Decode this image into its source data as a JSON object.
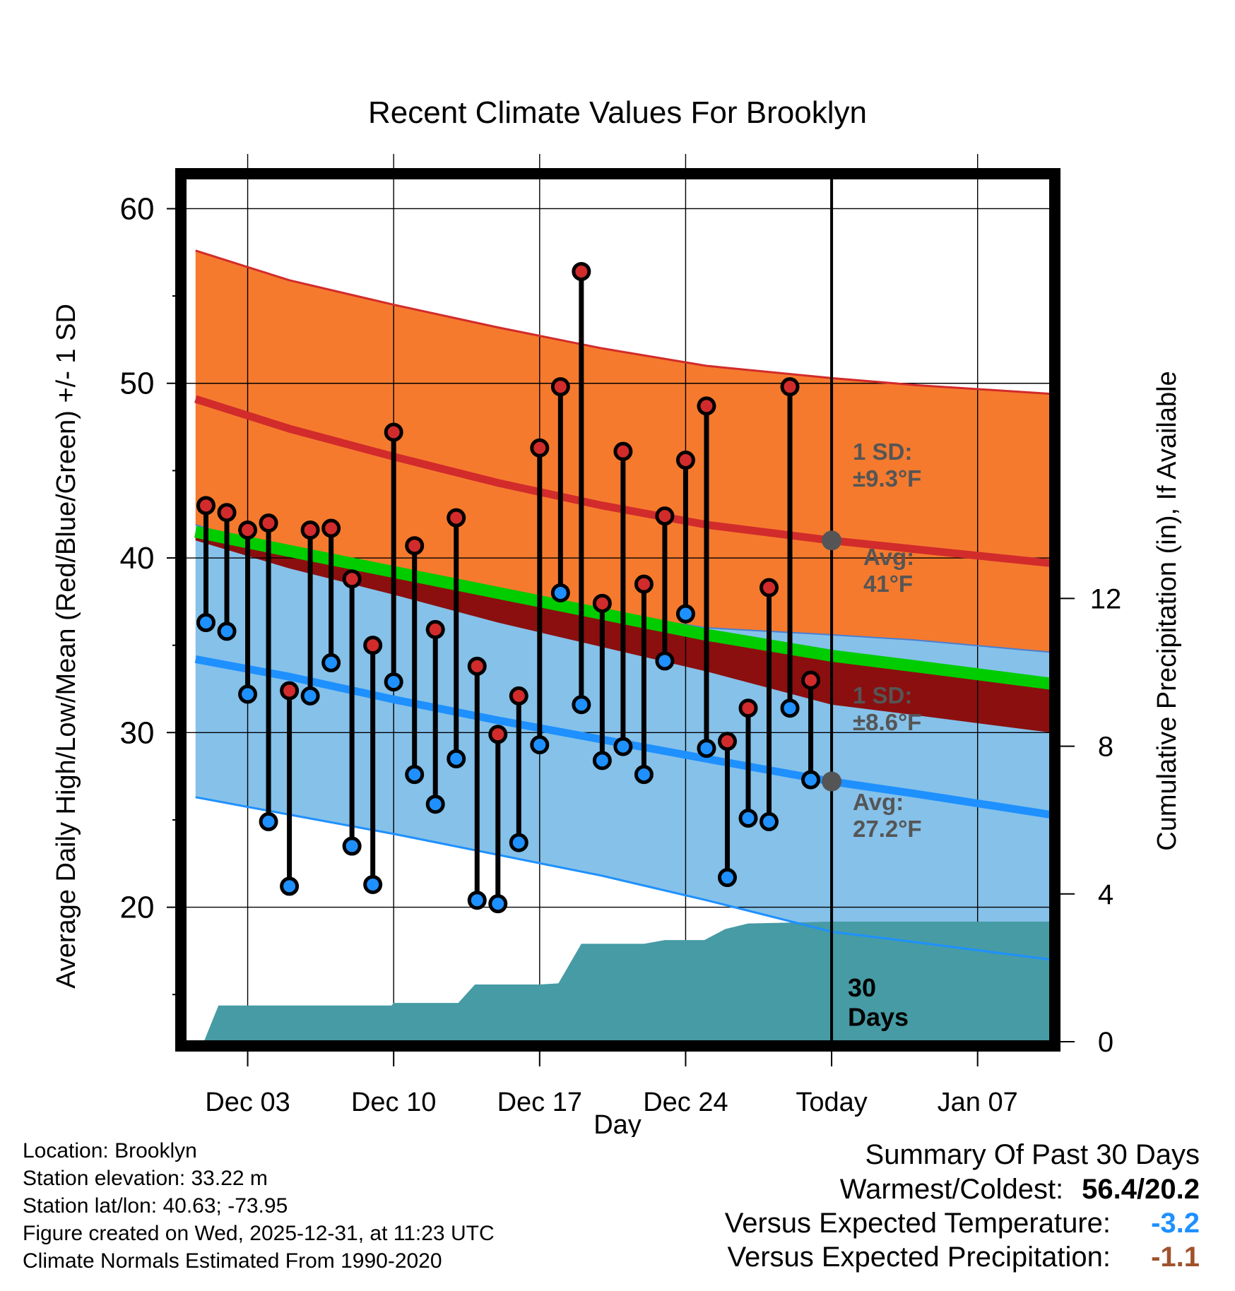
{
  "colors": {
    "high_band": "#F57A2E",
    "high_line": "#D22B2B",
    "low_band": "#85C1E9",
    "low_line": "#1E90FF",
    "mean_band": "#8B0F0F",
    "mean_line": "#00CC00",
    "precip": "#469BA4",
    "high_dot": "#D22B2B",
    "low_dot": "#1E90FF",
    "annotation": "#555555"
  },
  "chart_data": {
    "type": "line",
    "title": "Recent Climate Values For Brooklyn",
    "xlabel": "Day",
    "ylabel": "Average Daily High/Low/Mean (Red/Blue/Green) +/- 1 SD",
    "y2label": "Cumulative Precipitation (in), If Available",
    "xlim": [
      0,
      41.5
    ],
    "ylim": [
      12.3,
      62
    ],
    "y2lim": [
      0,
      23.5
    ],
    "x_ticks": [
      {
        "x": 3,
        "label": "Dec 03"
      },
      {
        "x": 10,
        "label": "Dec 10"
      },
      {
        "x": 17,
        "label": "Dec 17"
      },
      {
        "x": 24,
        "label": "Dec 24"
      },
      {
        "x": 31,
        "label": "Today"
      },
      {
        "x": 38,
        "label": "Jan 07"
      }
    ],
    "y_ticks": [
      20,
      30,
      40,
      50,
      60
    ],
    "y2_ticks": [
      0,
      4,
      8,
      12
    ],
    "today_x": 31,
    "normals": {
      "x": [
        0.5,
        5,
        10,
        15,
        20,
        25,
        31,
        35,
        41.5
      ],
      "avg_high": [
        49.1,
        47.4,
        45.8,
        44.3,
        43.0,
        41.9,
        41.0,
        40.5,
        39.7
      ],
      "high_upper": [
        57.6,
        55.9,
        54.5,
        53.2,
        52.0,
        51.0,
        50.3,
        49.9,
        49.4
      ],
      "high_lower": [
        41.9,
        40.3,
        39.0,
        37.9,
        36.9,
        36.0,
        35.6,
        35.3,
        34.6
      ],
      "avg_mean": [
        41.5,
        40.4,
        39.2,
        38.0,
        36.8,
        35.6,
        34.4,
        33.8,
        32.8
      ],
      "mean_lower": [
        41.0,
        39.4,
        37.9,
        36.3,
        34.9,
        33.5,
        31.6,
        31.0,
        30.0
      ],
      "avg_low": [
        34.2,
        33.2,
        31.9,
        30.7,
        29.6,
        28.5,
        27.2,
        26.5,
        25.3
      ],
      "low_lower": [
        26.3,
        25.3,
        24.2,
        23.0,
        21.8,
        20.4,
        18.6,
        18.0,
        17.0
      ]
    },
    "series": [
      {
        "name": "Daily High",
        "x": [
          1,
          2,
          3,
          4,
          5,
          6,
          7,
          8,
          9,
          10,
          11,
          12,
          13,
          14,
          15,
          16,
          17,
          18,
          19,
          20,
          21,
          22,
          23,
          24,
          25,
          26,
          27,
          28,
          29,
          30
        ],
        "values": [
          43.0,
          42.6,
          41.6,
          42.0,
          32.4,
          41.6,
          41.7,
          38.8,
          35.0,
          47.2,
          40.7,
          35.9,
          42.3,
          33.8,
          29.9,
          32.1,
          46.3,
          49.8,
          56.4,
          37.4,
          46.1,
          38.5,
          42.4,
          45.6,
          48.7,
          29.5,
          31.4,
          38.3,
          49.8,
          33.0
        ]
      },
      {
        "name": "Daily Low",
        "x": [
          1,
          2,
          3,
          4,
          5,
          6,
          7,
          8,
          9,
          10,
          11,
          12,
          13,
          14,
          15,
          16,
          17,
          18,
          19,
          20,
          21,
          22,
          23,
          24,
          25,
          26,
          27,
          28,
          29,
          30
        ],
        "values": [
          36.3,
          35.8,
          32.2,
          24.9,
          21.2,
          32.1,
          34.0,
          23.5,
          21.3,
          32.9,
          27.6,
          25.9,
          28.5,
          20.4,
          20.2,
          23.7,
          29.3,
          38.0,
          31.6,
          28.4,
          29.2,
          27.6,
          34.1,
          36.8,
          29.1,
          21.7,
          25.1,
          24.9,
          31.4,
          27.3
        ]
      },
      {
        "name": "Cumulative Precipitation",
        "x": [
          0.9,
          1.6,
          9.9,
          10.0,
          13.1,
          13.9,
          17.0,
          17.9,
          19.0,
          20.0,
          22.0,
          23.0,
          24.9,
          25.9,
          27.0,
          31.0,
          41.5
        ],
        "values": [
          0.0,
          0.98,
          0.98,
          1.05,
          1.05,
          1.55,
          1.55,
          1.58,
          2.65,
          2.65,
          2.65,
          2.75,
          2.75,
          3.05,
          3.2,
          3.25,
          3.25
        ]
      }
    ],
    "annotations": {
      "high_sd": "1 SD:\n±9.3°F",
      "high_avg": "Avg:\n41°F",
      "low_sd": "1 SD:\n±8.6°F",
      "low_avg": "Avg:\n27.2°F",
      "days": "30\nDays"
    }
  },
  "footer": {
    "location": "Location: Brooklyn",
    "elevation": "Station elevation: 33.22 m",
    "latlon": "Station lat/lon: 40.63; -73.95",
    "created": "Figure created on Wed, 2025-12-31, at 11:23 UTC",
    "normals": "Climate Normals Estimated From 1990-2020"
  },
  "summary": {
    "title": "Summary Of Past 30 Days",
    "warmest_label": "Warmest/Coldest:",
    "warmest_value": "56.4/20.2",
    "temp_label": "Versus Expected Temperature:",
    "temp_value": "-3.2",
    "precip_label": "Versus Expected Precipitation:",
    "precip_value": "-1.1"
  }
}
